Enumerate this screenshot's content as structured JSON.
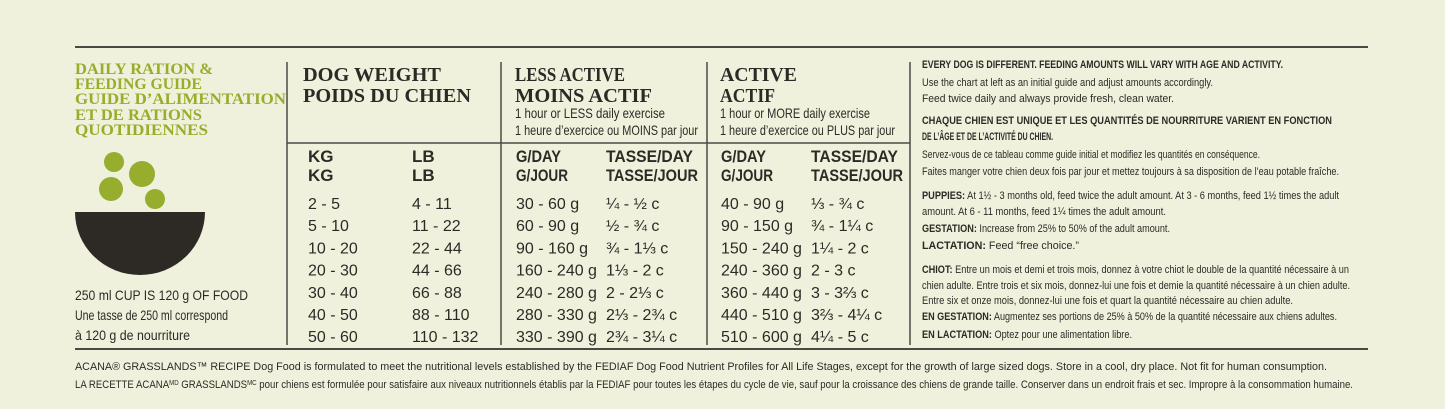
{
  "header": {
    "title": [
      "DAILY RATION &",
      "FEEDING GUIDE",
      "GUIDE D’ALIMENTATION",
      "ET DE RATIONS",
      "QUOTIDIENNES"
    ]
  },
  "cup_note": [
    "250 ml CUP IS 120 g OF FOOD",
    "Une tasse de 250 ml correspond",
    "à 120 g de nourriture"
  ],
  "table": {
    "groups": [
      {
        "title": [
          "DOG WEIGHT",
          "POIDS DU CHIEN"
        ],
        "subtitle": []
      },
      {
        "title": [
          "LESS ACTIVE",
          "MOINS ACTIF"
        ],
        "subtitle": [
          "1 hour or LESS daily exercise",
          "1 heure d’exercice ou MOINS par jour"
        ]
      },
      {
        "title": [
          "ACTIVE",
          "ACTIF"
        ],
        "subtitle": [
          "1 hour or MORE daily exercise",
          "1 heure d’exercice ou PLUS par jour"
        ]
      }
    ],
    "columns": [
      [
        "KG",
        "KG"
      ],
      [
        "LB",
        "LB"
      ],
      [
        "G/DAY",
        "G/JOUR"
      ],
      [
        "TASSE/DAY",
        "TASSE/JOUR"
      ],
      [
        "G/DAY",
        "G/JOUR"
      ],
      [
        "TASSE/DAY",
        "TASSE/JOUR"
      ]
    ],
    "rows": [
      [
        "2 - 5",
        "4 - 11",
        "30 - 60 g",
        "¼ - ½ c",
        "40 - 90 g",
        "⅓ - ¾ c"
      ],
      [
        "5 - 10",
        "11 - 22",
        "60 - 90 g",
        "½ - ¾ c",
        "90 - 150 g",
        "¾ - 1¼ c"
      ],
      [
        "10 - 20",
        "22 - 44",
        "90 - 160 g",
        "¾ - 1⅓ c",
        "150 - 240 g",
        "1¼ - 2 c"
      ],
      [
        "20 - 30",
        "44 - 66",
        "160 - 240 g",
        "1⅓ - 2 c",
        "240 - 360 g",
        "2 - 3 c"
      ],
      [
        "30 - 40",
        "66 - 88",
        "240 - 280 g",
        "2 - 2⅓ c",
        "360 - 440 g",
        "3 - 3⅔ c"
      ],
      [
        "40 - 50",
        "88 - 110",
        "280 - 330 g",
        "2⅓ - 2¾ c",
        "440 - 510 g",
        "3⅔ - 4¼ c"
      ],
      [
        "50 - 60",
        "110 - 132",
        "330 - 390 g",
        "2¾ - 3¼ c",
        "510 - 600 g",
        "4¼ - 5 c"
      ]
    ]
  },
  "notes": [
    {
      "label": "EVERY DOG IS DIFFERENT. FEEDING AMOUNTS WILL VARY WITH AGE AND ACTIVITY."
    },
    {
      "text": "Use the chart at left as an initial guide and adjust amounts accordingly."
    },
    {
      "text": "Feed twice daily and always provide fresh, clean water."
    },
    {
      "label": "CHAQUE CHIEN EST UNIQUE ET LES QUANTITÉS DE NOURRITURE VARIENT EN FONCTION"
    },
    {
      "label": "DE L’ÂGE ET DE L’ACTIVITÉ DU CHIEN."
    },
    {
      "text": "Servez-vous de ce tableau comme guide initial et modifiez les quantités en conséquence."
    },
    {
      "text": "Faites manger votre chien deux fois par jour et mettez toujours à sa disposition de l’eau potable fraîche."
    },
    {
      "label": "PUPPIES:",
      "text": " At 1½ - 3 months old, feed twice the adult amount. At 3 - 6 months, feed 1½ times the adult"
    },
    {
      "text": "amount. At  6 - 11 months, feed 1¼ times the adult amount."
    },
    {
      "label": "GESTATION:",
      "text": " Increase from 25% to 50% of the adult amount."
    },
    {
      "label": "LACTATION:",
      "text": " Feed “free choice.”"
    },
    {
      "label": "CHIOT:",
      "text": " Entre un mois et demi et trois mois, donnez à votre chiot le double de la quantité nécessaire à un"
    },
    {
      "text": "chien adulte. Entre trois et six mois, donnez-lui une fois et demie la quantité nécessaire à un chien adulte."
    },
    {
      "text": "Entre six et onze mois, donnez-lui une fois et quart la quantité nécessaire au chien adulte."
    },
    {
      "label": "EN GESTATION:",
      "text": " Augmentez ses portions de 25% à 50% de la quantité nécessaire aux chiens adultes."
    },
    {
      "label": "EN LACTATION:",
      "text": " Optez pour une alimentation libre."
    }
  ],
  "footer": [
    [
      "ACANA® GRASSLANDS™ RECIPE  Dog Food is formulated to meet the nutritional levels established by the FEDIAF Dog Food Nutrient Profiles for All Life Stages, except for the growth of large sized dogs.  Store in a cool, dry place. Not fit for human consumption."
    ],
    [
      "LA RECETTE ACANA",
      "MD",
      " GRASSLANDS",
      "MC",
      " pour chiens est formulée pour satisfaire aux niveaux nutritionnels établis par la FEDIAF pour toutes les étapes du cycle de vie, sauf pour la croissance des chiens de grande taille. Conserver dans un endroit frais et sec. Impropre à la consommation humaine."
    ]
  ]
}
